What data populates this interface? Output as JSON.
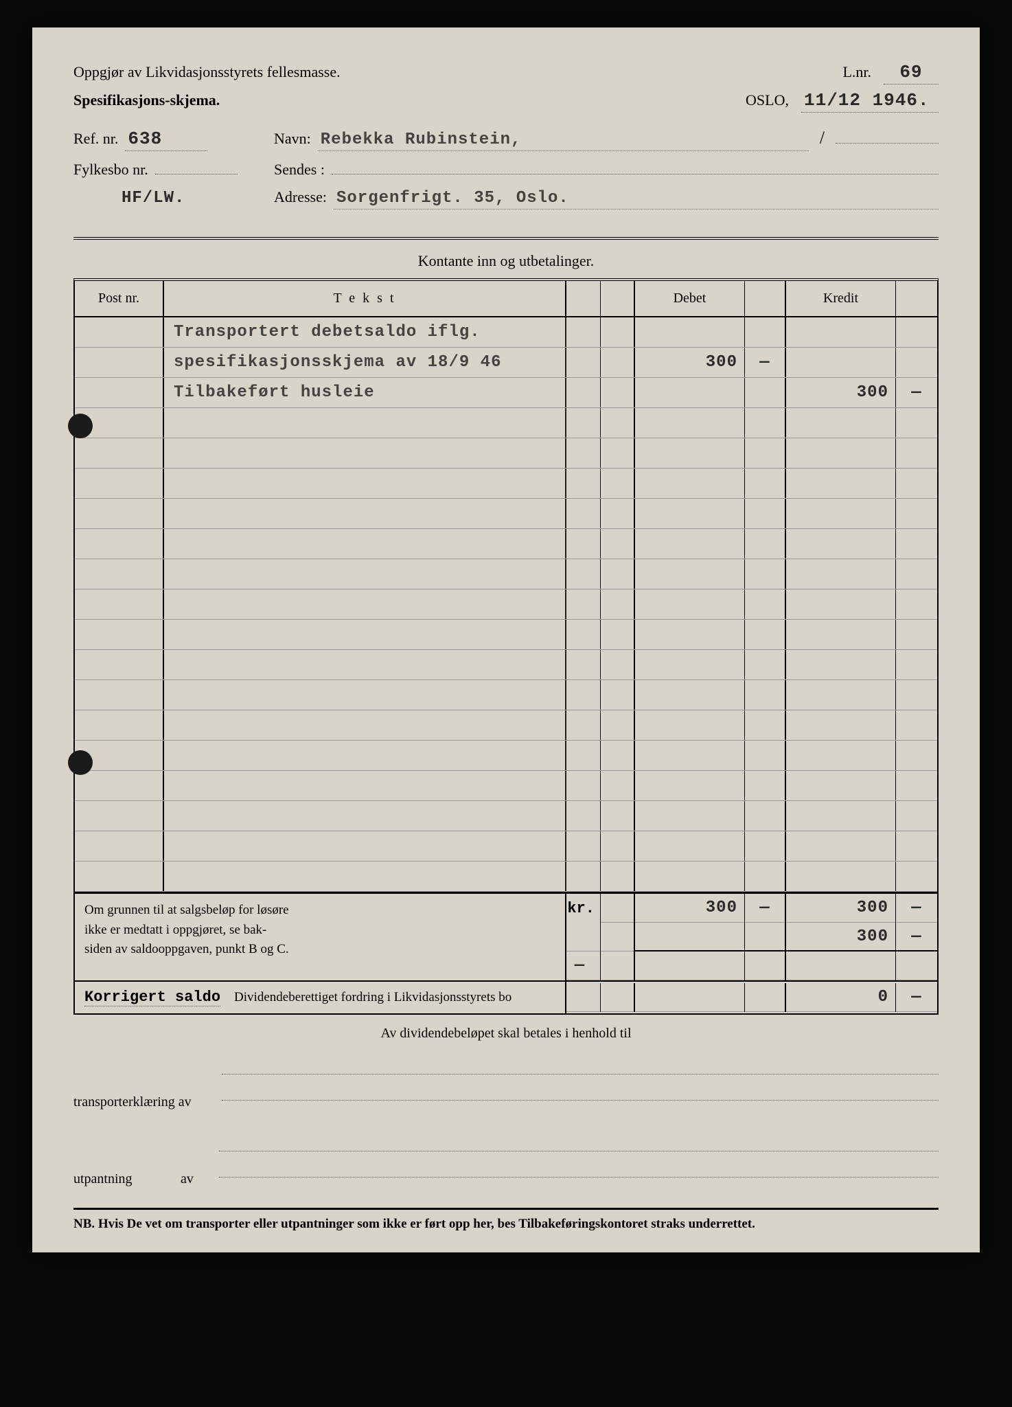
{
  "header": {
    "title_line": "Oppgjør av Likvidasjonsstyrets fellesmasse.",
    "spec_line": "Spesifikasjons-skjema.",
    "lnr_label": "L.nr.",
    "lnr_value": "69",
    "city": "OSLO,",
    "date": "11/12 1946.",
    "ref_label": "Ref. nr.",
    "ref_value": "638",
    "navn_label": "Navn:",
    "navn_value": "Rebekka Rubinstein,",
    "fylkesbo_label": "Fylkesbo nr.",
    "fylkesbo_value": "",
    "sendes_label": "Sendes :",
    "sendes_value": "",
    "code": "HF/LW.",
    "adresse_label": "Adresse:",
    "adresse_value": "Sorgenfrigt. 35, Oslo."
  },
  "table": {
    "section_title": "Kontante inn og utbetalinger.",
    "head_post": "Post nr.",
    "head_text": "T e k s t",
    "head_debet": "Debet",
    "head_kredit": "Kredit",
    "rows": [
      {
        "text": "Transportert debetsaldo iflg.",
        "debet": "",
        "debet_c": "",
        "kredit": "",
        "kredit_c": ""
      },
      {
        "text": "spesifikasjonsskjema av 18/9 46",
        "debet": "300",
        "debet_c": "—",
        "kredit": "",
        "kredit_c": ""
      },
      {
        "text": "Tilbakeført husleie",
        "debet": "",
        "debet_c": "",
        "kredit": "300",
        "kredit_c": "—"
      }
    ],
    "empty_rows": 16
  },
  "footer": {
    "note_l1": "Om grunnen til at salgsbeløp for løsøre",
    "note_l2": "ikke er medtatt i oppgjøret, se bak-",
    "note_l3": "siden av saldooppgaven, punkt B og C.",
    "kr": "kr.",
    "dash": "—",
    "sum_debet": "300",
    "sum_debet_c": "—",
    "sum_kredit": "300",
    "sum_kredit_c": "—",
    "bal_kredit": "300",
    "bal_kredit_c": "—",
    "korrigert": "Korrigert saldo",
    "dividend_text": "Dividendeberettiget fordring i Likvidasjonsstyrets bo",
    "final_kredit": "0",
    "final_kredit_c": "—"
  },
  "below": {
    "center": "Av dividendebeløpet skal betales i henhold til",
    "transport": "transporterklæring av",
    "utpantning": "utpantning",
    "av": "av"
  },
  "nb": "NB. Hvis De vet om transporter eller utpantninger som ikke er ført opp her, bes Tilbakeføringskontoret straks underrettet."
}
